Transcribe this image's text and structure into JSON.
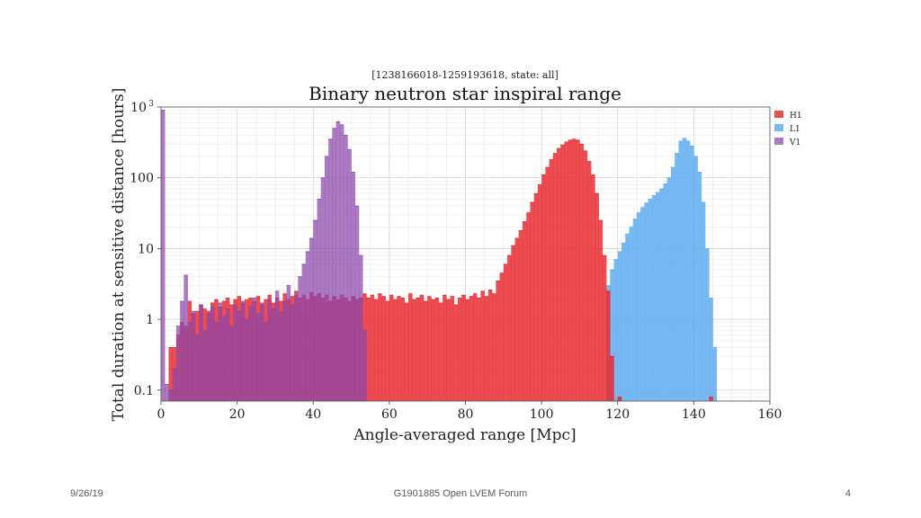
{
  "slide": {
    "footer_date": "9/26/19",
    "footer_center": "G1901885 Open LVEM Forum",
    "page_number": "4"
  },
  "chart_data": {
    "type": "histogram",
    "subtitle": "[1238166018-1259193618, state: all]",
    "title": "Binary neutron star inspiral range",
    "xlabel": "Angle-averaged range [Mpc]",
    "ylabel": "Total duration at sensitive distance [hours]",
    "xlim": [
      0,
      160
    ],
    "ylim": [
      0.07,
      1000
    ],
    "yscale": "log",
    "grid": true,
    "legend_position": "right-outside-top",
    "x_ticks": [
      "0",
      "20",
      "40",
      "60",
      "80",
      "100",
      "120",
      "140",
      "160"
    ],
    "y_ticks": [
      {
        "value": 0.1,
        "label": "0.1"
      },
      {
        "value": 1,
        "label": "1"
      },
      {
        "value": 10,
        "label": "10"
      },
      {
        "value": 100,
        "label": "100"
      },
      {
        "value": 1000,
        "label": "10",
        "sup": "3"
      }
    ],
    "bin_width": 1,
    "series": [
      {
        "name": "H1",
        "color": "#e8262c",
        "fill_opacity": 0.82,
        "bins": [
          [
            2,
            0.4
          ],
          [
            3,
            0.4
          ],
          [
            4,
            0.6
          ],
          [
            5,
            0.9
          ],
          [
            6,
            0.8
          ],
          [
            7,
            1.8
          ],
          [
            8,
            1.2
          ],
          [
            9,
            1.3
          ],
          [
            10,
            1.6
          ],
          [
            11,
            1.4
          ],
          [
            12,
            1.3
          ],
          [
            13,
            1.7
          ],
          [
            14,
            1.9
          ],
          [
            15,
            1.5
          ],
          [
            16,
            1.8
          ],
          [
            17,
            2.0
          ],
          [
            18,
            1.6
          ],
          [
            19,
            1.9
          ],
          [
            20,
            2.1
          ],
          [
            21,
            1.7
          ],
          [
            22,
            1.9
          ],
          [
            23,
            2.0
          ],
          [
            24,
            1.8
          ],
          [
            25,
            2.1
          ],
          [
            26,
            1.6
          ],
          [
            27,
            1.9
          ],
          [
            28,
            2.2
          ],
          [
            29,
            1.7
          ],
          [
            30,
            2.0
          ],
          [
            31,
            1.8
          ],
          [
            32,
            2.3
          ],
          [
            33,
            1.9
          ],
          [
            34,
            2.1
          ],
          [
            35,
            2.5
          ],
          [
            36,
            2.0
          ],
          [
            37,
            2.2
          ],
          [
            38,
            1.9
          ],
          [
            39,
            2.4
          ],
          [
            40,
            2.1
          ],
          [
            41,
            2.3
          ],
          [
            42,
            2.0
          ],
          [
            43,
            2.2
          ],
          [
            44,
            1.8
          ],
          [
            45,
            2.1
          ],
          [
            46,
            1.9
          ],
          [
            47,
            2.2
          ],
          [
            48,
            2.0
          ],
          [
            49,
            1.8
          ],
          [
            50,
            2.1
          ],
          [
            51,
            1.9
          ],
          [
            52,
            2.0
          ],
          [
            53,
            2.3
          ],
          [
            54,
            2.0
          ],
          [
            55,
            2.2
          ],
          [
            56,
            1.9
          ],
          [
            57,
            2.3
          ],
          [
            58,
            2.1
          ],
          [
            59,
            1.8
          ],
          [
            60,
            2.2
          ],
          [
            61,
            1.9
          ],
          [
            62,
            2.1
          ],
          [
            63,
            2.0
          ],
          [
            64,
            1.7
          ],
          [
            65,
            2.3
          ],
          [
            66,
            1.9
          ],
          [
            67,
            2.0
          ],
          [
            68,
            2.2
          ],
          [
            69,
            1.8
          ],
          [
            70,
            2.1
          ],
          [
            71,
            1.9
          ],
          [
            72,
            2.0
          ],
          [
            73,
            1.7
          ],
          [
            74,
            2.2
          ],
          [
            75,
            1.9
          ],
          [
            76,
            2.1
          ],
          [
            77,
            1.6
          ],
          [
            78,
            2.0
          ],
          [
            79,
            2.2
          ],
          [
            80,
            1.9
          ],
          [
            81,
            2.1
          ],
          [
            82,
            2.3
          ],
          [
            83,
            2.0
          ],
          [
            84,
            2.5
          ],
          [
            85,
            2.1
          ],
          [
            86,
            2.6
          ],
          [
            87,
            2.3
          ],
          [
            88,
            3.5
          ],
          [
            89,
            4.5
          ],
          [
            90,
            6
          ],
          [
            91,
            8
          ],
          [
            92,
            11
          ],
          [
            93,
            14
          ],
          [
            94,
            18
          ],
          [
            95,
            24
          ],
          [
            96,
            32
          ],
          [
            97,
            45
          ],
          [
            98,
            60
          ],
          [
            99,
            80
          ],
          [
            100,
            110
          ],
          [
            101,
            140
          ],
          [
            102,
            180
          ],
          [
            103,
            220
          ],
          [
            104,
            260
          ],
          [
            105,
            290
          ],
          [
            106,
            320
          ],
          [
            107,
            340
          ],
          [
            108,
            350
          ],
          [
            109,
            340
          ],
          [
            110,
            300
          ],
          [
            111,
            240
          ],
          [
            112,
            170
          ],
          [
            113,
            110
          ],
          [
            114,
            60
          ],
          [
            115,
            25
          ],
          [
            116,
            8
          ],
          [
            117,
            2.5
          ],
          [
            118,
            0.3
          ],
          [
            119,
            0
          ],
          [
            120,
            0.08
          ],
          [
            144,
            0.08
          ]
        ]
      },
      {
        "name": "L1",
        "color": "#5aaaf0",
        "fill_opacity": 0.82,
        "bins": [
          [
            117,
            3
          ],
          [
            118,
            5
          ],
          [
            119,
            7
          ],
          [
            120,
            9
          ],
          [
            121,
            12
          ],
          [
            122,
            16
          ],
          [
            123,
            20
          ],
          [
            124,
            26
          ],
          [
            125,
            32
          ],
          [
            126,
            38
          ],
          [
            127,
            44
          ],
          [
            128,
            50
          ],
          [
            129,
            56
          ],
          [
            130,
            62
          ],
          [
            131,
            70
          ],
          [
            132,
            82
          ],
          [
            133,
            100
          ],
          [
            134,
            140
          ],
          [
            135,
            220
          ],
          [
            136,
            330
          ],
          [
            137,
            360
          ],
          [
            138,
            330
          ],
          [
            139,
            280
          ],
          [
            140,
            200
          ],
          [
            141,
            120
          ],
          [
            142,
            45
          ],
          [
            143,
            10
          ],
          [
            144,
            2
          ],
          [
            145,
            0.4
          ]
        ]
      },
      {
        "name": "V1",
        "color": "#8a46aa",
        "fill_opacity": 0.72,
        "bins": [
          [
            0,
            900
          ],
          [
            1,
            0.12
          ],
          [
            2,
            0.1
          ],
          [
            3,
            0.2
          ],
          [
            4,
            0.8
          ],
          [
            5,
            1.8
          ],
          [
            6,
            4.2
          ],
          [
            7,
            0.9
          ],
          [
            8,
            1.3
          ],
          [
            9,
            0.6
          ],
          [
            10,
            1.6
          ],
          [
            11,
            0.7
          ],
          [
            12,
            1.2
          ],
          [
            13,
            1.5
          ],
          [
            14,
            0.9
          ],
          [
            15,
            1.7
          ],
          [
            16,
            1.1
          ],
          [
            17,
            1.4
          ],
          [
            18,
            0.8
          ],
          [
            19,
            1.6
          ],
          [
            20,
            1.3
          ],
          [
            21,
            1.8
          ],
          [
            22,
            1.0
          ],
          [
            23,
            1.5
          ],
          [
            24,
            2.0
          ],
          [
            25,
            1.2
          ],
          [
            26,
            1.7
          ],
          [
            27,
            0.9
          ],
          [
            28,
            1.9
          ],
          [
            29,
            1.4
          ],
          [
            30,
            2.5
          ],
          [
            31,
            1.3
          ],
          [
            32,
            1.8
          ],
          [
            33,
            3.0
          ],
          [
            34,
            1.6
          ],
          [
            35,
            2.2
          ],
          [
            36,
            4
          ],
          [
            37,
            6
          ],
          [
            38,
            9
          ],
          [
            39,
            14
          ],
          [
            40,
            25
          ],
          [
            41,
            50
          ],
          [
            42,
            100
          ],
          [
            43,
            200
          ],
          [
            44,
            350
          ],
          [
            45,
            500
          ],
          [
            46,
            620
          ],
          [
            47,
            560
          ],
          [
            48,
            400
          ],
          [
            49,
            250
          ],
          [
            50,
            120
          ],
          [
            51,
            40
          ],
          [
            52,
            8
          ],
          [
            53,
            0.7
          ]
        ]
      }
    ]
  }
}
